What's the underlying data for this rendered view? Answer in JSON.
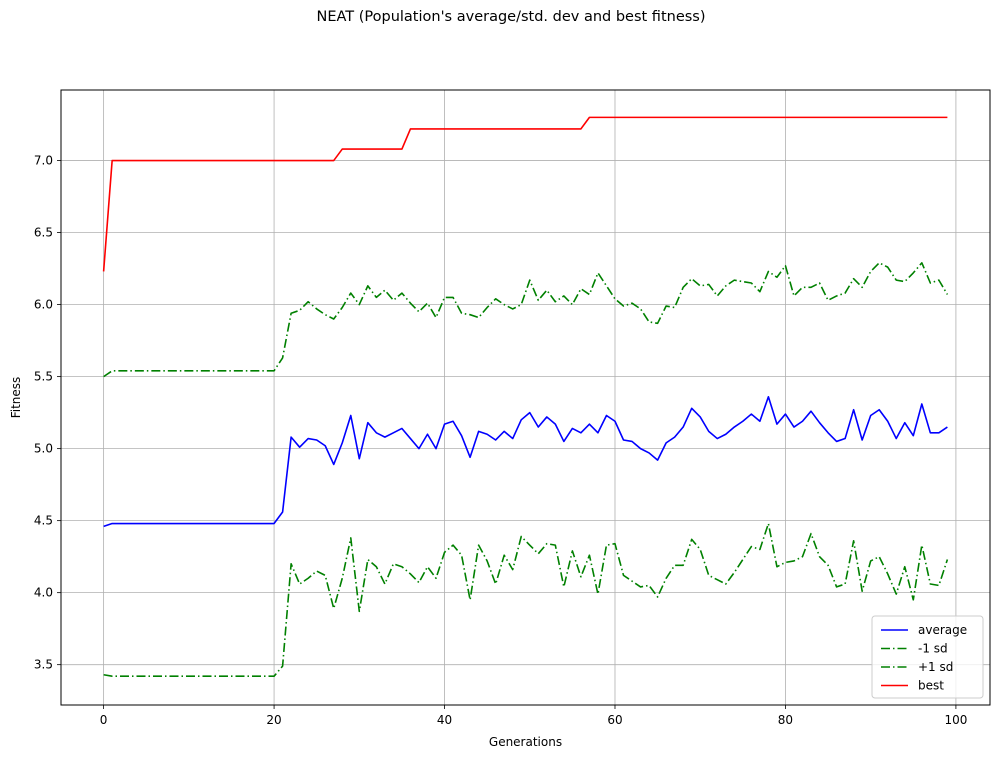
{
  "chart_data": {
    "type": "line",
    "title": "NEAT (Population's average/std. dev and best fitness)",
    "xlabel": "Generations",
    "ylabel": "Fitness",
    "xlim": [
      -5,
      104
    ],
    "ylim": [
      3.22,
      7.49
    ],
    "xticks": [
      0,
      20,
      40,
      60,
      80,
      100
    ],
    "yticks": [
      3.5,
      4.0,
      4.5,
      5.0,
      5.5,
      6.0,
      6.5,
      7.0
    ],
    "xtick_labels": [
      "0",
      "20",
      "40",
      "60",
      "80",
      "100"
    ],
    "ytick_labels": [
      "3.5",
      "4.0",
      "4.5",
      "5.0",
      "5.5",
      "6.0",
      "6.5",
      "7.0"
    ],
    "grid": true,
    "legend_position": "lower-right",
    "x": [
      0,
      1,
      2,
      3,
      4,
      5,
      6,
      7,
      8,
      9,
      10,
      11,
      12,
      13,
      14,
      15,
      16,
      17,
      18,
      19,
      20,
      21,
      22,
      23,
      24,
      25,
      26,
      27,
      28,
      29,
      30,
      31,
      32,
      33,
      34,
      35,
      36,
      37,
      38,
      39,
      40,
      41,
      42,
      43,
      44,
      45,
      46,
      47,
      48,
      49,
      50,
      51,
      52,
      53,
      54,
      55,
      56,
      57,
      58,
      59,
      60,
      61,
      62,
      63,
      64,
      65,
      66,
      67,
      68,
      69,
      70,
      71,
      72,
      73,
      74,
      75,
      76,
      77,
      78,
      79,
      80,
      81,
      82,
      83,
      84,
      85,
      86,
      87,
      88,
      89,
      90,
      91,
      92,
      93,
      94,
      95,
      96,
      97,
      98,
      99
    ],
    "series": [
      {
        "name": "average",
        "color": "#0000ff",
        "style": "solid",
        "values": [
          4.46,
          4.48,
          4.48,
          4.48,
          4.48,
          4.48,
          4.48,
          4.48,
          4.48,
          4.48,
          4.48,
          4.48,
          4.48,
          4.48,
          4.48,
          4.48,
          4.48,
          4.48,
          4.48,
          4.48,
          4.48,
          4.56,
          5.08,
          5.01,
          5.07,
          5.06,
          5.02,
          4.89,
          5.04,
          5.23,
          4.93,
          5.18,
          5.11,
          5.08,
          5.11,
          5.14,
          5.07,
          5.0,
          5.1,
          5.0,
          5.17,
          5.19,
          5.09,
          4.94,
          5.12,
          5.1,
          5.06,
          5.12,
          5.07,
          5.2,
          5.25,
          5.15,
          5.22,
          5.17,
          5.05,
          5.14,
          5.11,
          5.17,
          5.11,
          5.23,
          5.19,
          5.06,
          5.05,
          5.0,
          4.97,
          4.92,
          5.04,
          5.08,
          5.15,
          5.28,
          5.22,
          5.12,
          5.07,
          5.1,
          5.15,
          5.19,
          5.24,
          5.19,
          5.36,
          5.17,
          5.24,
          5.15,
          5.19,
          5.26,
          5.18,
          5.11,
          5.05,
          5.07,
          5.27,
          5.06,
          5.23,
          5.27,
          5.19,
          5.07,
          5.18,
          5.09,
          5.31,
          5.11,
          5.11,
          5.15
        ]
      },
      {
        "name": "-1 sd",
        "color": "#008000",
        "style": "dashdot",
        "values": [
          3.43,
          3.42,
          3.42,
          3.42,
          3.42,
          3.42,
          3.42,
          3.42,
          3.42,
          3.42,
          3.42,
          3.42,
          3.42,
          3.42,
          3.42,
          3.42,
          3.42,
          3.42,
          3.42,
          3.42,
          3.42,
          3.49,
          4.2,
          4.06,
          4.1,
          4.15,
          4.12,
          3.89,
          4.1,
          4.38,
          3.87,
          4.23,
          4.18,
          4.06,
          4.2,
          4.18,
          4.13,
          4.07,
          4.18,
          4.1,
          4.28,
          4.33,
          4.26,
          3.95,
          4.33,
          4.22,
          4.06,
          4.26,
          4.16,
          4.39,
          4.33,
          4.27,
          4.34,
          4.33,
          4.04,
          4.29,
          4.11,
          4.26,
          3.99,
          4.33,
          4.34,
          4.12,
          4.08,
          4.04,
          4.05,
          3.97,
          4.1,
          4.19,
          4.19,
          4.37,
          4.3,
          4.12,
          4.09,
          4.06,
          4.14,
          4.23,
          4.32,
          4.3,
          4.48,
          4.18,
          4.21,
          4.22,
          4.25,
          4.41,
          4.25,
          4.19,
          4.04,
          4.06,
          4.36,
          4.01,
          4.22,
          4.25,
          4.13,
          3.99,
          4.18,
          3.95,
          4.33,
          4.06,
          4.05,
          4.23
        ]
      },
      {
        "name": "+1 sd",
        "color": "#008000",
        "style": "dashdot",
        "values": [
          5.5,
          5.54,
          5.54,
          5.54,
          5.54,
          5.54,
          5.54,
          5.54,
          5.54,
          5.54,
          5.54,
          5.54,
          5.54,
          5.54,
          5.54,
          5.54,
          5.54,
          5.54,
          5.54,
          5.54,
          5.54,
          5.63,
          5.94,
          5.96,
          6.02,
          5.97,
          5.93,
          5.9,
          5.98,
          6.08,
          6.0,
          6.13,
          6.05,
          6.1,
          6.03,
          6.08,
          6.01,
          5.95,
          6.01,
          5.91,
          6.05,
          6.05,
          5.94,
          5.93,
          5.91,
          5.98,
          6.04,
          6.0,
          5.97,
          6.0,
          6.17,
          6.03,
          6.1,
          6.02,
          6.06,
          6.0,
          6.11,
          6.07,
          6.22,
          6.13,
          6.04,
          5.99,
          6.01,
          5.97,
          5.88,
          5.87,
          5.99,
          5.98,
          6.12,
          6.18,
          6.13,
          6.14,
          6.06,
          6.13,
          6.17,
          6.16,
          6.15,
          6.09,
          6.23,
          6.19,
          6.27,
          6.06,
          6.12,
          6.12,
          6.15,
          6.03,
          6.06,
          6.08,
          6.18,
          6.12,
          6.23,
          6.29,
          6.26,
          6.17,
          6.16,
          6.22,
          6.29,
          6.15,
          6.17,
          6.07
        ]
      },
      {
        "name": "best",
        "color": "#ff0000",
        "style": "solid",
        "values": [
          6.23,
          7.0,
          7.0,
          7.0,
          7.0,
          7.0,
          7.0,
          7.0,
          7.0,
          7.0,
          7.0,
          7.0,
          7.0,
          7.0,
          7.0,
          7.0,
          7.0,
          7.0,
          7.0,
          7.0,
          7.0,
          7.0,
          7.0,
          7.0,
          7.0,
          7.0,
          7.0,
          7.0,
          7.08,
          7.08,
          7.08,
          7.08,
          7.08,
          7.08,
          7.08,
          7.08,
          7.22,
          7.22,
          7.22,
          7.22,
          7.22,
          7.22,
          7.22,
          7.22,
          7.22,
          7.22,
          7.22,
          7.22,
          7.22,
          7.22,
          7.22,
          7.22,
          7.22,
          7.22,
          7.22,
          7.22,
          7.22,
          7.3,
          7.3,
          7.3,
          7.3,
          7.3,
          7.3,
          7.3,
          7.3,
          7.3,
          7.3,
          7.3,
          7.3,
          7.3,
          7.3,
          7.3,
          7.3,
          7.3,
          7.3,
          7.3,
          7.3,
          7.3,
          7.3,
          7.3,
          7.3,
          7.3,
          7.3,
          7.3,
          7.3,
          7.3,
          7.3,
          7.3,
          7.3,
          7.3,
          7.3,
          7.3,
          7.3,
          7.3,
          7.3,
          7.3,
          7.3,
          7.3,
          7.3,
          7.3
        ]
      }
    ]
  }
}
